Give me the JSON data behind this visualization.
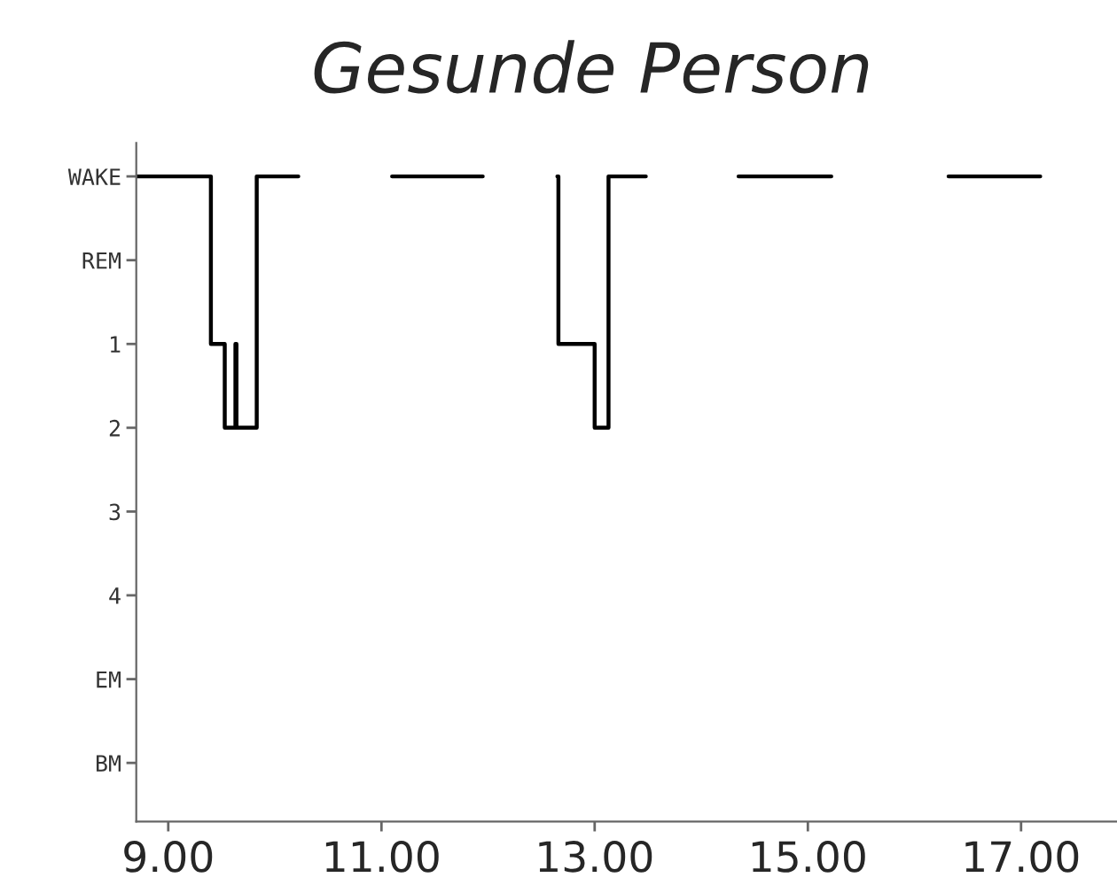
{
  "chart_data": {
    "type": "step",
    "title": "Gesunde Person",
    "series": [
      {
        "color": "#000000",
        "x": [
          8.7,
          9.4,
          9.53,
          9.63,
          9.64,
          9.83,
          10.22
        ],
        "values": [
          -1,
          1,
          2,
          1,
          2,
          -1,
          -1
        ]
      },
      {
        "color": "#000000",
        "x": [
          11.1,
          11.95
        ],
        "values": [
          -1,
          -1
        ]
      },
      {
        "color": "#000000",
        "x": [
          12.65,
          12.66,
          13.0,
          13.13,
          13.48
        ],
        "values": [
          -1,
          1,
          2,
          -1,
          -1
        ]
      },
      {
        "color": "#000000",
        "x": [
          14.35,
          15.22
        ],
        "values": [
          -1,
          -1
        ]
      },
      {
        "color": "#000000",
        "x": [
          16.32,
          17.18
        ],
        "values": [
          -1,
          -1
        ]
      }
    ],
    "xlim": [
      8.7,
      17.9
    ],
    "xticks": [
      {
        "value": 9,
        "label": "9.00"
      },
      {
        "value": 11,
        "label": "11.00"
      },
      {
        "value": 13,
        "label": "13.00"
      },
      {
        "value": 15,
        "label": "15.00"
      },
      {
        "value": 17,
        "label": "17.00"
      }
    ],
    "ylim": [
      6.7,
      -1.4
    ],
    "yticks": [
      {
        "value": -1,
        "label": "WAKE"
      },
      {
        "value": 0,
        "label": "REM"
      },
      1,
      2,
      3,
      4,
      {
        "value": 5,
        "label": "EM"
      },
      {
        "value": 6,
        "label": "BM"
      }
    ],
    "grid": false
  }
}
